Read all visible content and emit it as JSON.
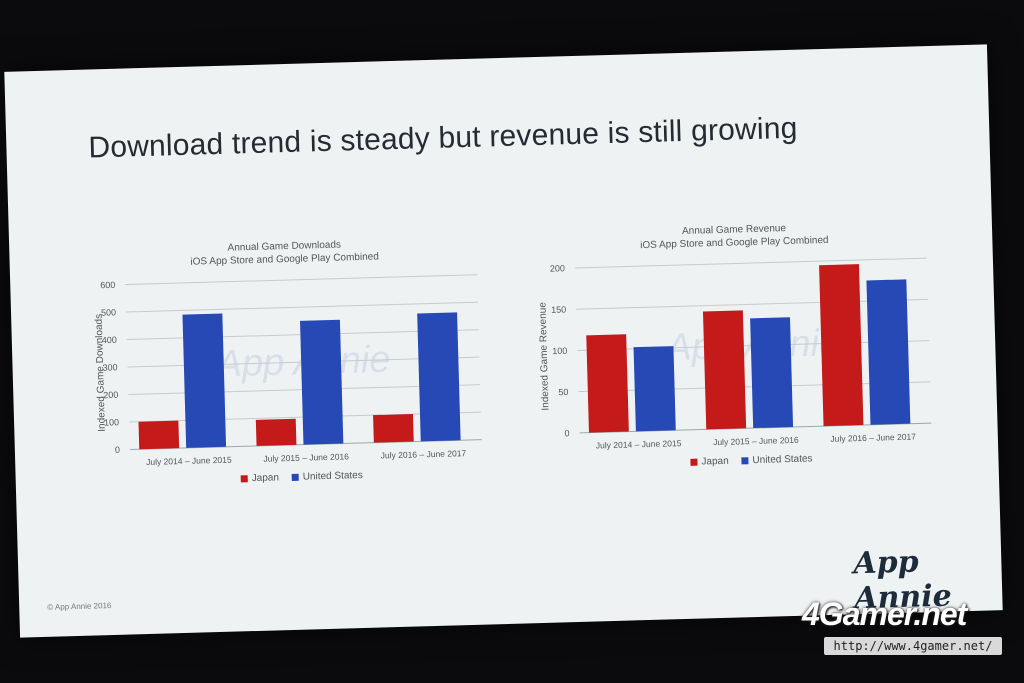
{
  "slide": {
    "title": "Download trend is steady but revenue is still growing",
    "copyright": "© App Annie 2016",
    "brand": "App Annie"
  },
  "watermark": {
    "site": "4Gamer.net",
    "url": "http://www.4gamer.net/"
  },
  "colors": {
    "japan": "#c41a1a",
    "united_states": "#2749b5"
  },
  "chart_data": [
    {
      "type": "bar",
      "title": "Annual Game Downloads",
      "subtitle": "iOS App Store and Google Play Combined",
      "ylabel": "Indexed Game Downloads",
      "xlabel": "",
      "ylim": [
        0,
        600
      ],
      "yticks": [
        0,
        100,
        200,
        300,
        400,
        500,
        600
      ],
      "categories": [
        "July 2014 – June 2015",
        "July 2015 – June 2016",
        "July 2016 – June 2017"
      ],
      "series": [
        {
          "name": "Japan",
          "values": [
            100,
            95,
            100
          ]
        },
        {
          "name": "United States",
          "values": [
            485,
            450,
            465
          ]
        }
      ],
      "watermark": "App Annie",
      "legend": "bottom",
      "grid": true
    },
    {
      "type": "bar",
      "title": "Annual Game Revenue",
      "subtitle": "iOS App Store and Google Play Combined",
      "ylabel": "Indexed Game Revenue",
      "xlabel": "",
      "ylim": [
        0,
        200
      ],
      "yticks": [
        0,
        50,
        100,
        150,
        200
      ],
      "categories": [
        "July 2014 – June 2015",
        "July 2015 – June 2016",
        "July 2016 – June 2017"
      ],
      "series": [
        {
          "name": "Japan",
          "values": [
            118,
            143,
            195
          ]
        },
        {
          "name": "United States",
          "values": [
            102,
            133,
            175
          ]
        }
      ],
      "watermark": "App Annie",
      "legend": "bottom",
      "grid": true
    }
  ]
}
